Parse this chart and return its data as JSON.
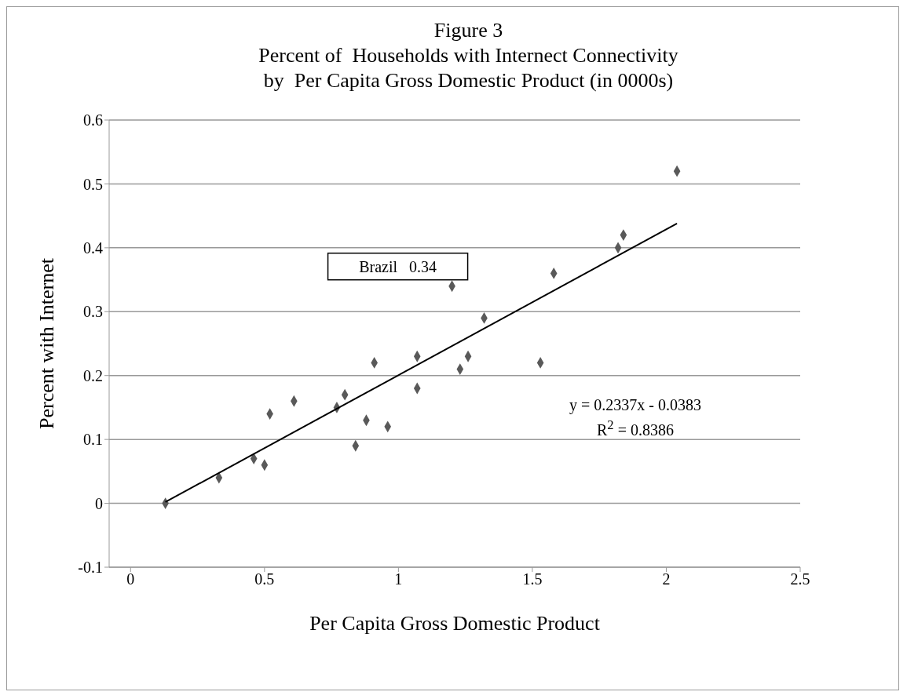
{
  "chart_data": {
    "type": "scatter",
    "title": "Figure 3",
    "subtitle": "Percent of  Households with Internect Connectivity\nby  Per Capita Gross Domestic Product (in 0000s)",
    "xlabel": "Per Capita Gross Domestic Product",
    "ylabel": "Percent with Internet",
    "series": [
      {
        "color": "#595959",
        "marker": "diamond",
        "x": [
          0.13,
          0.33,
          0.46,
          0.5,
          0.52,
          0.61,
          0.77,
          0.8,
          0.84,
          0.88,
          0.91,
          0.96,
          1.07,
          1.07,
          1.2,
          1.23,
          1.26,
          1.32,
          1.53,
          1.58,
          1.82,
          1.84,
          2.04
        ],
        "values": [
          0,
          0.04,
          0.07,
          0.06,
          0.14,
          0.16,
          0.15,
          0.17,
          0.09,
          0.13,
          0.22,
          0.12,
          0.23,
          0.18,
          0.34,
          0.21,
          0.23,
          0.29,
          0.22,
          0.36,
          0.4,
          0.42,
          0.52
        ]
      },
      {
        "type": "line",
        "color": "#000000",
        "marker": "none",
        "x": [
          0.13,
          2.04
        ],
        "values": [
          0.002,
          0.438
        ]
      }
    ],
    "xlim": [
      -0.08,
      2.5
    ],
    "xticks": [
      0,
      0.5,
      1,
      1.5,
      2,
      2.5
    ],
    "ylim": [
      -0.1,
      0.6
    ],
    "yticks": [
      -0.1,
      0,
      0.1,
      0.2,
      0.3,
      0.4,
      0.5,
      0.6
    ],
    "grid": "y",
    "annotations": [
      {
        "text": "Brazil   0.34",
        "x": 1.2,
        "y": 0.34
      },
      "y = 0.2337x - 0.0383",
      "R$^{2}$ = 0.8386"
    ]
  }
}
